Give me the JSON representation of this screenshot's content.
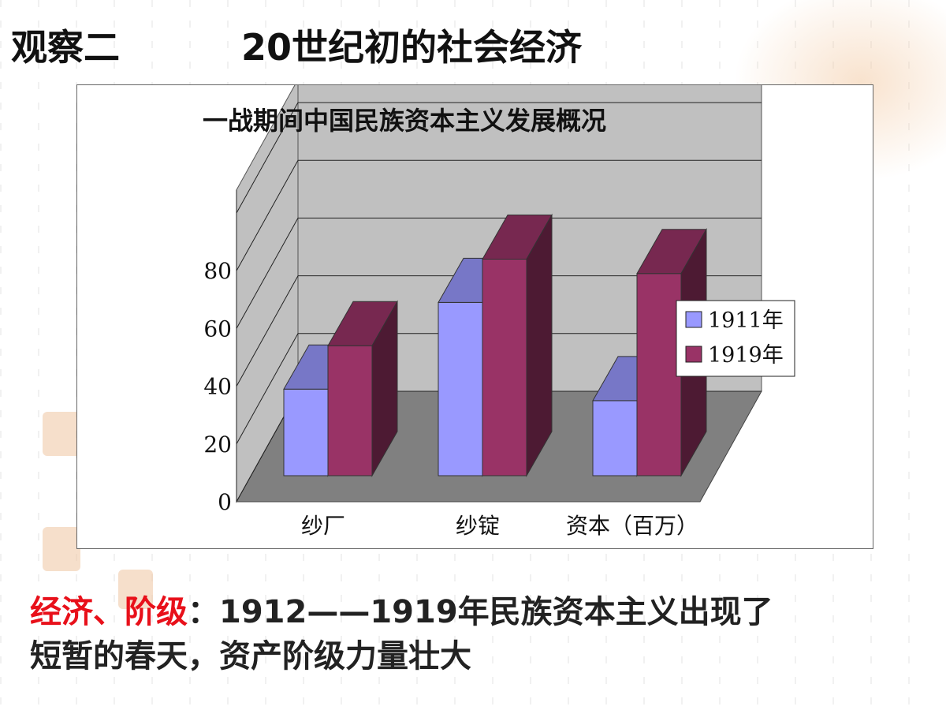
{
  "slide": {
    "heading": "观察二",
    "subheading": "20世纪初的社会经济"
  },
  "chart_data": {
    "type": "bar",
    "title": "一战期间中国民族资本主义发展概况",
    "categories": [
      "纱厂",
      "纱锭",
      "资本（百万）"
    ],
    "series": [
      {
        "name": "1911年",
        "values": [
          30,
          60,
          26
        ],
        "color": "#9999ff"
      },
      {
        "name": "1919年",
        "values": [
          45,
          75,
          70
        ],
        "color": "#993366"
      }
    ],
    "ylim": [
      0,
      80
    ],
    "yticks": [
      "0",
      "20",
      "40",
      "60",
      "80"
    ],
    "legend_position": "right",
    "grid": true,
    "style": "3d-clustered-column"
  },
  "footer": {
    "label": "经济、阶级",
    "separator": "：",
    "text_line1": "1912——1919年民族资本主义出现了",
    "text_line2": "短暂的春天，资产阶级力量壮大"
  }
}
